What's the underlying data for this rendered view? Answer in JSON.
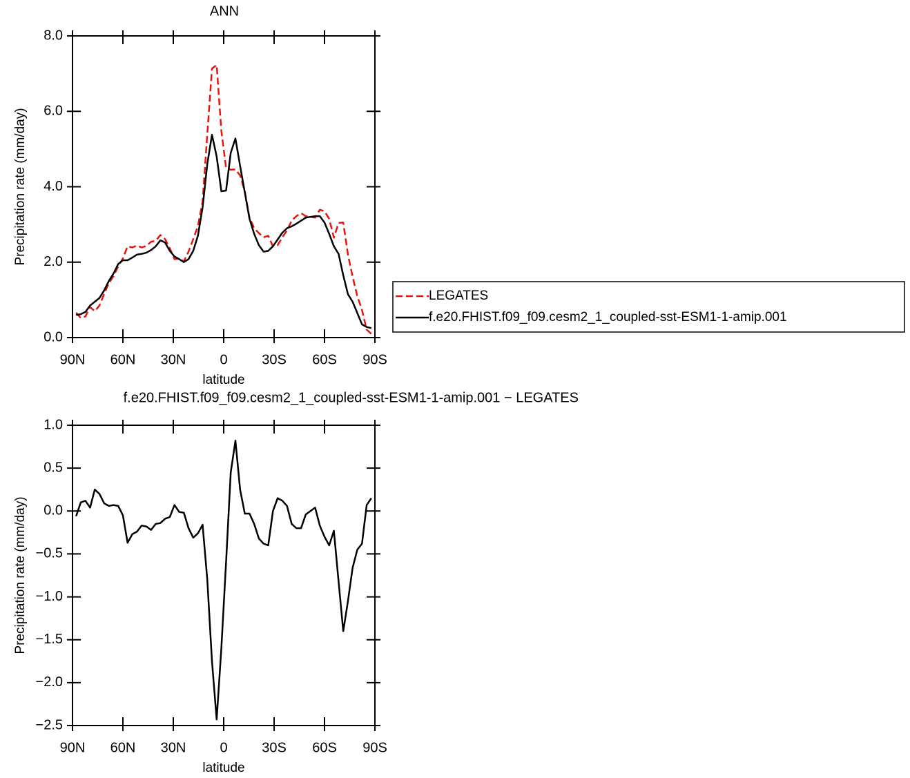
{
  "chart_data": [
    {
      "type": "line",
      "title": "ANN",
      "xlabel": "latitude",
      "ylabel": "Precipitation rate (mm/day)",
      "x": [
        87.86,
        85.1,
        82.31,
        79.53,
        76.74,
        73.95,
        71.16,
        68.37,
        65.58,
        62.79,
        60.0,
        57.21,
        54.42,
        51.63,
        48.84,
        46.04,
        43.25,
        40.46,
        37.67,
        34.88,
        32.09,
        29.3,
        26.51,
        23.72,
        20.93,
        18.14,
        15.35,
        12.56,
        9.77,
        6.98,
        4.19,
        1.4,
        -1.4,
        -4.19,
        -6.98,
        -9.77,
        -12.56,
        -15.35,
        -18.14,
        -20.93,
        -23.72,
        -26.51,
        -29.3,
        -32.09,
        -34.88,
        -37.67,
        -40.46,
        -43.25,
        -46.04,
        -48.84,
        -51.63,
        -54.42,
        -57.21,
        -60.0,
        -62.79,
        -65.58,
        -68.37,
        -71.16,
        -73.95,
        -76.74,
        -79.53,
        -82.31,
        -85.1,
        -87.86
      ],
      "series": [
        {
          "name": "LEGATES",
          "color": "#e8140c",
          "dash": true,
          "values": [
            0.66,
            0.52,
            0.56,
            0.81,
            0.7,
            0.85,
            1.16,
            1.44,
            1.63,
            1.89,
            2.1,
            2.42,
            2.39,
            2.44,
            2.39,
            2.43,
            2.54,
            2.57,
            2.72,
            2.61,
            2.37,
            2.08,
            2.09,
            2.02,
            2.28,
            2.61,
            2.96,
            3.61,
            5.4,
            7.13,
            7.23,
            5.48,
            4.5,
            4.45,
            4.46,
            4.3,
            3.88,
            3.18,
            2.9,
            2.77,
            2.66,
            2.7,
            2.42,
            2.45,
            2.66,
            2.84,
            3.1,
            3.22,
            3.3,
            3.22,
            3.2,
            3.18,
            3.39,
            3.35,
            3.15,
            2.65,
            3.04,
            3.05,
            2.2,
            1.61,
            1.1,
            0.73,
            0.21,
            0.1
          ]
        },
        {
          "name": "f.e20.FHIST.f09_f09.cesm2_1_coupled-sst-ESM1-1-amip.001",
          "color": "#000000",
          "dash": false,
          "values": [
            0.6,
            0.62,
            0.68,
            0.85,
            0.95,
            1.05,
            1.25,
            1.5,
            1.7,
            1.95,
            2.05,
            2.05,
            2.12,
            2.2,
            2.22,
            2.25,
            2.32,
            2.42,
            2.58,
            2.52,
            2.3,
            2.15,
            2.08,
            2.0,
            2.08,
            2.3,
            2.7,
            3.45,
            4.6,
            5.38,
            4.8,
            3.88,
            3.9,
            4.9,
            5.28,
            4.55,
            3.85,
            3.15,
            2.75,
            2.45,
            2.28,
            2.3,
            2.42,
            2.6,
            2.78,
            2.9,
            2.95,
            3.02,
            3.1,
            3.18,
            3.2,
            3.22,
            3.22,
            3.05,
            2.75,
            2.42,
            2.22,
            1.65,
            1.15,
            0.95,
            0.65,
            0.35,
            0.28,
            0.25
          ]
        }
      ],
      "xlim": [
        90,
        -90
      ],
      "xticks": [
        {
          "value": 90,
          "label": "90N"
        },
        {
          "value": 60,
          "label": "60N"
        },
        {
          "value": 30,
          "label": "30N"
        },
        0,
        {
          "value": -30,
          "label": "30S"
        },
        {
          "value": -60,
          "label": "60S"
        },
        {
          "value": -90,
          "label": "90S"
        }
      ],
      "ylim": [
        0,
        8
      ],
      "yticks": [
        {
          "value": 0,
          "label": "0.0"
        },
        {
          "value": 2,
          "label": "2.0"
        },
        {
          "value": 4,
          "label": "4.0"
        },
        {
          "value": 6,
          "label": "6.0"
        },
        {
          "value": 8,
          "label": "8.0"
        }
      ],
      "legend": "right"
    },
    {
      "type": "line",
      "title": "f.e20.FHIST.f09_f09.cesm2_1_coupled-sst-ESM1-1-amip.001 − LEGATES",
      "xlabel": "latitude",
      "ylabel": "Precipitation rate (mm/day)",
      "x": [
        87.86,
        85.1,
        82.31,
        79.53,
        76.74,
        73.95,
        71.16,
        68.37,
        65.58,
        62.79,
        60.0,
        57.21,
        54.42,
        51.63,
        48.84,
        46.04,
        43.25,
        40.46,
        37.67,
        34.88,
        32.09,
        29.3,
        26.51,
        23.72,
        20.93,
        18.14,
        15.35,
        12.56,
        9.77,
        6.98,
        4.19,
        1.4,
        -1.4,
        -4.19,
        -6.98,
        -9.77,
        -12.56,
        -15.35,
        -18.14,
        -20.93,
        -23.72,
        -26.51,
        -29.3,
        -32.09,
        -34.88,
        -37.67,
        -40.46,
        -43.25,
        -46.04,
        -48.84,
        -51.63,
        -54.42,
        -57.21,
        -60.0,
        -62.79,
        -65.58,
        -68.37,
        -71.16,
        -73.95,
        -76.74,
        -79.53,
        -82.31,
        -85.1,
        -87.86
      ],
      "values": [
        -0.06,
        0.1,
        0.12,
        0.04,
        0.25,
        0.2,
        0.09,
        0.06,
        0.07,
        0.06,
        -0.05,
        -0.37,
        -0.27,
        -0.24,
        -0.17,
        -0.18,
        -0.22,
        -0.15,
        -0.14,
        -0.09,
        -0.07,
        0.07,
        -0.01,
        -0.02,
        -0.2,
        -0.31,
        -0.26,
        -0.16,
        -0.8,
        -1.75,
        -2.43,
        -1.6,
        -0.6,
        0.45,
        0.82,
        0.25,
        -0.03,
        -0.03,
        -0.15,
        -0.32,
        -0.38,
        -0.4,
        0.0,
        0.15,
        0.12,
        0.06,
        -0.15,
        -0.2,
        -0.2,
        -0.04,
        0.0,
        0.04,
        -0.17,
        -0.3,
        -0.4,
        -0.23,
        -0.82,
        -1.4,
        -1.05,
        -0.66,
        -0.45,
        -0.38,
        0.07,
        0.15
      ],
      "color": "#000000",
      "xlim": [
        90,
        -90
      ],
      "xticks": [
        {
          "value": 90,
          "label": "90N"
        },
        {
          "value": 60,
          "label": "60N"
        },
        {
          "value": 30,
          "label": "30N"
        },
        0,
        {
          "value": -30,
          "label": "30S"
        },
        {
          "value": -60,
          "label": "60S"
        },
        {
          "value": -90,
          "label": "90S"
        }
      ],
      "ylim": [
        -2.5,
        1
      ],
      "yticks": [
        {
          "value": -2.5,
          "label": "−2.5"
        },
        {
          "value": -2,
          "label": "−2.0"
        },
        {
          "value": -1.5,
          "label": "−1.5"
        },
        {
          "value": -1,
          "label": "−1.0"
        },
        {
          "value": -0.5,
          "label": "−0.5"
        },
        {
          "value": 0,
          "label": "0.0"
        },
        {
          "value": 0.5,
          "label": "0.5"
        },
        {
          "value": 1,
          "label": "1.0"
        }
      ]
    }
  ]
}
